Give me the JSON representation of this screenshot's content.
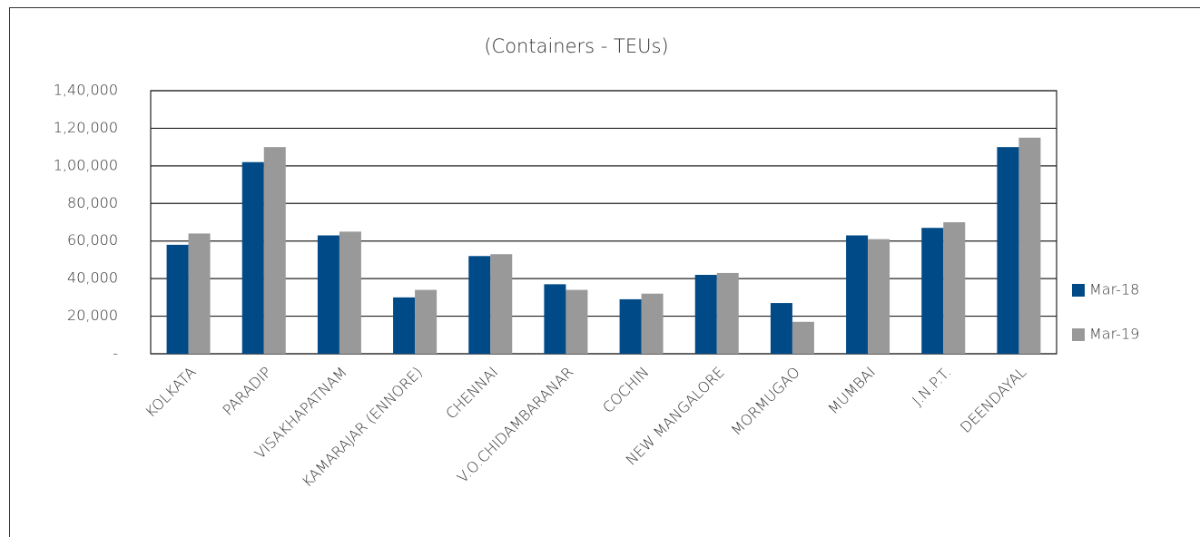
{
  "chart_data": {
    "type": "bar",
    "title": "(Containers - TEUs)",
    "categories": [
      "KOLKATA",
      "PARADIP",
      "VISAKHAPATNAM",
      "KAMARAJAR (ENNORE)",
      "CHENNAI",
      "V.O.CHIDAMBARANAR",
      "COCHIN",
      "NEW MANGALORE",
      "MORMUGAO",
      "MUMBAI",
      "J.N.P.T.",
      "DEENDAYAL"
    ],
    "series": [
      {
        "name": "Mar-18",
        "color": "#004a87",
        "values": [
          58000,
          102000,
          63000,
          30000,
          52000,
          37000,
          29000,
          42000,
          27000,
          63000,
          67000,
          110000
        ]
      },
      {
        "name": "Mar-19",
        "color": "#999999",
        "values": [
          64000,
          110000,
          65000,
          34000,
          53000,
          34000,
          32000,
          43000,
          17000,
          61000,
          70000,
          115000
        ]
      }
    ],
    "ylim": [
      0,
      140000
    ],
    "yticks": [
      {
        "value": 0,
        "label": "-"
      },
      {
        "value": 20000,
        "label": "20,000"
      },
      {
        "value": 40000,
        "label": "40,000"
      },
      {
        "value": 60000,
        "label": "60,000"
      },
      {
        "value": 80000,
        "label": "80,000"
      },
      {
        "value": 100000,
        "label": "1,00,000"
      },
      {
        "value": 120000,
        "label": "1,20,000"
      },
      {
        "value": 140000,
        "label": "1,40,000"
      }
    ],
    "grid": true,
    "legend": "right"
  }
}
